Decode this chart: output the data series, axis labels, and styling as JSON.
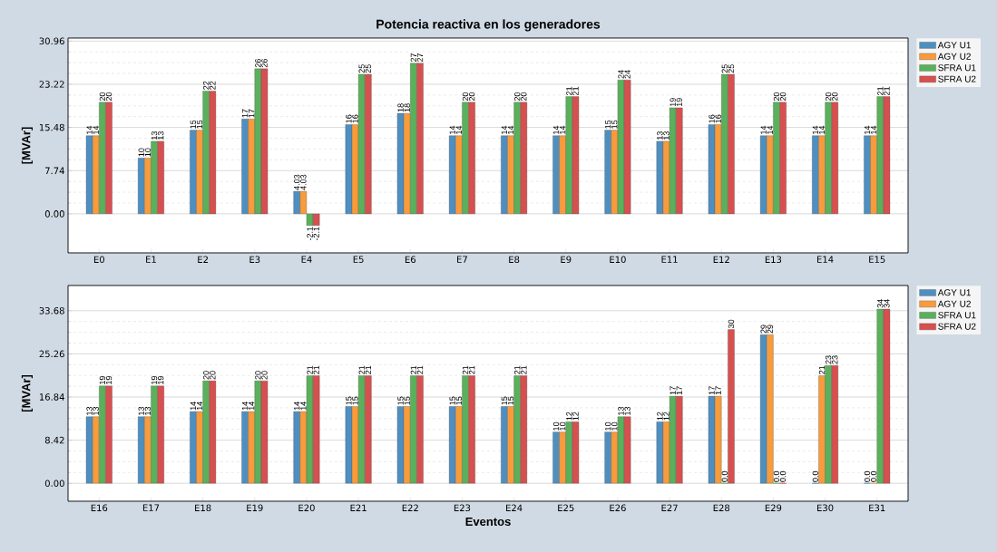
{
  "chart_data": [
    {
      "type": "bar",
      "title": "Potencia reactiva en los generadores",
      "ylabel": "[MVAr]",
      "categories": [
        "E0",
        "E1",
        "E2",
        "E3",
        "E4",
        "E5",
        "E6",
        "E7",
        "E8",
        "E9",
        "E10",
        "E11",
        "E12",
        "E13",
        "E14",
        "E15"
      ],
      "series": [
        {
          "name": "AGY U1",
          "color": "#4f8fc0",
          "values": [
            14,
            10,
            15,
            17,
            4.03,
            16,
            18,
            14,
            14,
            14,
            15,
            13,
            16,
            14,
            14,
            14
          ],
          "value_labels": [
            "14",
            "10",
            "15",
            "17",
            "4.03",
            "16",
            "18",
            "14",
            "14",
            "14",
            "15",
            "13",
            "16",
            "14",
            "14",
            "14"
          ]
        },
        {
          "name": "AGY U2",
          "color": "#f79b3c",
          "values": [
            14,
            10,
            15,
            17,
            4.03,
            16,
            18,
            14,
            14,
            14,
            15,
            13,
            16,
            14,
            14,
            14
          ],
          "value_labels": [
            "14",
            "10",
            "15",
            "17",
            "4.03",
            "16",
            "18",
            "14",
            "14",
            "14",
            "15",
            "13",
            "16",
            "14",
            "14",
            "14"
          ]
        },
        {
          "name": "SFRA U1",
          "color": "#5bb05b",
          "values": [
            20,
            13,
            22,
            26,
            -2.1,
            25,
            27,
            20,
            20,
            21,
            24,
            19,
            25,
            20,
            20,
            21
          ],
          "value_labels": [
            "20",
            "13",
            "22",
            "26",
            "-2.1",
            "25",
            "27",
            "20",
            "20",
            "21",
            "24",
            "19",
            "25",
            "20",
            "20",
            "21"
          ]
        },
        {
          "name": "SFRA U2",
          "color": "#d65050",
          "values": [
            20,
            13,
            22,
            26,
            -2.1,
            25,
            27,
            20,
            20,
            21,
            24,
            19,
            25,
            20,
            20,
            21
          ],
          "value_labels": [
            "20",
            "13",
            "22",
            "26",
            "-2.1",
            "25",
            "27",
            "20",
            "20",
            "21",
            "24",
            "19",
            "25",
            "20",
            "20",
            "21"
          ]
        }
      ],
      "ylim": [
        -7,
        31.5
      ],
      "yticks": [
        {
          "value": 0,
          "label": "0.00"
        },
        7.74,
        15.48,
        23.22,
        30.96
      ],
      "grid": "y",
      "legend": "top right"
    },
    {
      "type": "bar",
      "xlabel": "Eventos",
      "ylabel": "[MVAr]",
      "categories": [
        "E16",
        "E17",
        "E18",
        "E19",
        "E20",
        "E21",
        "E22",
        "E23",
        "E24",
        "E25",
        "E26",
        "E27",
        "E28",
        "E29",
        "E30",
        "E31"
      ],
      "series": [
        {
          "name": "AGY U1",
          "color": "#4f8fc0",
          "values": [
            13,
            13,
            14,
            14,
            14,
            15,
            15,
            15,
            15,
            10,
            10,
            12,
            17,
            29,
            0,
            0
          ],
          "value_labels": [
            "13",
            "13",
            "14",
            "14",
            "14",
            "15",
            "15",
            "15",
            "15",
            "10",
            "10",
            "12",
            "17",
            "29",
            "0.0",
            "0.0"
          ]
        },
        {
          "name": "AGY U2",
          "color": "#f79b3c",
          "values": [
            13,
            13,
            14,
            14,
            14,
            15,
            15,
            15,
            15,
            10,
            10,
            12,
            17,
            29,
            21,
            0
          ],
          "value_labels": [
            "13",
            "13",
            "14",
            "14",
            "14",
            "15",
            "15",
            "15",
            "15",
            "10",
            "10",
            "12",
            "17",
            "29",
            "21",
            "0.0"
          ]
        },
        {
          "name": "SFRA U1",
          "color": "#5bb05b",
          "values": [
            19,
            19,
            20,
            20,
            21,
            21,
            21,
            21,
            21,
            12,
            13,
            17,
            0,
            0,
            23,
            34
          ],
          "value_labels": [
            "19",
            "19",
            "20",
            "20",
            "21",
            "21",
            "21",
            "21",
            "21",
            "12",
            "13",
            "17",
            "0.0",
            "0.0",
            "23",
            "34"
          ]
        },
        {
          "name": "SFRA U2",
          "color": "#d65050",
          "values": [
            19,
            19,
            20,
            20,
            21,
            21,
            21,
            21,
            21,
            12,
            13,
            17,
            30,
            0,
            23,
            34
          ],
          "value_labels": [
            "19",
            "19",
            "20",
            "20",
            "21",
            "21",
            "21",
            "21",
            "21",
            "12",
            "13",
            "17",
            "30",
            "0.0",
            "23",
            "34"
          ]
        }
      ],
      "ylim": [
        -3.5,
        38.6
      ],
      "yticks": [
        {
          "value": 0,
          "label": "0.00"
        },
        8.42,
        16.84,
        25.26,
        33.68
      ],
      "grid": "y",
      "legend": "top right"
    }
  ]
}
